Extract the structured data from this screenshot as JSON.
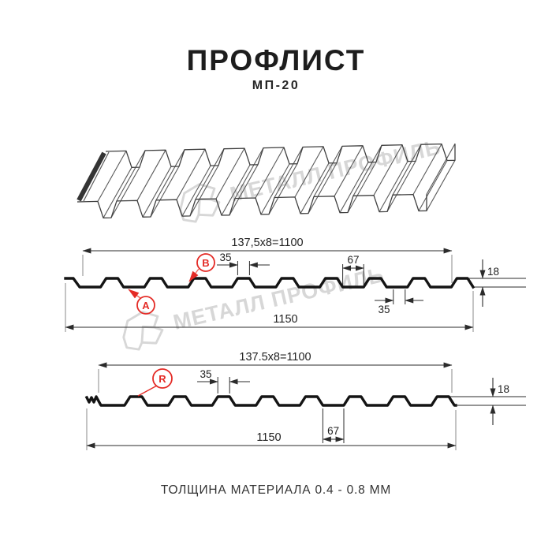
{
  "title": "ПРОФЛИСТ",
  "subtitle": "МП-20",
  "footer": "ТОЛЩИНА МАТЕРИАЛА 0.4 - 0.8 ММ",
  "watermark": {
    "text": "МЕТАЛЛ ПРОФИЛЬ"
  },
  "drawing_top": {
    "working_width": "137,5x8=1100",
    "crest_width": "35",
    "valley_width": "67",
    "height": "18",
    "crest_width_bottom": "35",
    "total_width": "1150",
    "label_a": "A",
    "label_b": "B"
  },
  "drawing_bottom": {
    "working_width": "137.5x8=1100",
    "crest_width": "35",
    "valley_width": "67",
    "height": "18",
    "total_width": "1150",
    "label_r": "R"
  },
  "colors": {
    "accent_red": "#e42b26",
    "watermark_gray": "#d7d7d7",
    "line_black": "#1a1a1a"
  }
}
